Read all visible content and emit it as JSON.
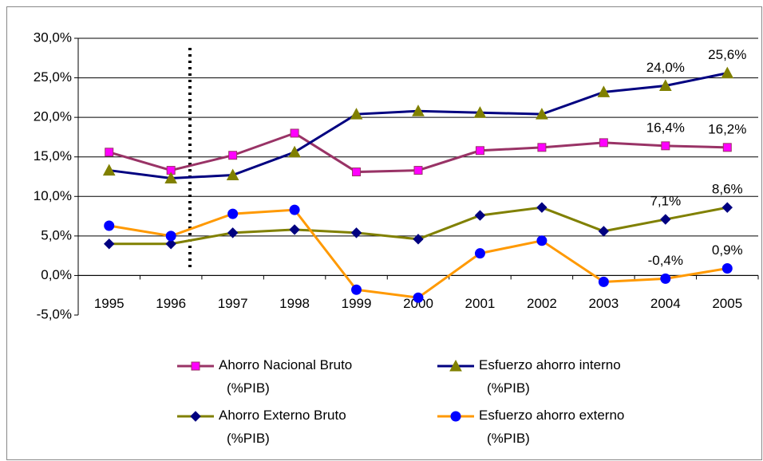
{
  "chart_data": {
    "type": "line",
    "categories": [
      "1995",
      "1996",
      "1997",
      "1998",
      "1999",
      "2000",
      "2001",
      "2002",
      "2003",
      "2004",
      "2005"
    ],
    "series": [
      {
        "name": "Ahorro Nacional Bruto\n(%PIB)",
        "color": "#993366",
        "marker": "square",
        "marker_color": "#ff00ff",
        "values": [
          15.6,
          13.3,
          15.2,
          18.0,
          13.1,
          13.3,
          15.8,
          16.2,
          16.8,
          16.4,
          16.2
        ],
        "value_labels": [
          null,
          null,
          null,
          null,
          null,
          null,
          null,
          null,
          null,
          "16,4%",
          "16,2%"
        ]
      },
      {
        "name": "Esfuerzo ahorro interno\n(%PIB)",
        "color": "#000080",
        "marker": "triangle",
        "marker_color": "#808000",
        "values": [
          13.3,
          12.3,
          12.7,
          15.6,
          20.4,
          20.8,
          20.6,
          20.4,
          23.2,
          24.0,
          25.6
        ],
        "value_labels": [
          null,
          null,
          null,
          null,
          null,
          null,
          null,
          null,
          null,
          "24,0%",
          "25,6%"
        ]
      },
      {
        "name": "Ahorro Externo Bruto\n(%PIB)",
        "color": "#808000",
        "marker": "diamond",
        "marker_color": "#000080",
        "values": [
          4.0,
          4.0,
          5.4,
          5.8,
          5.4,
          4.6,
          7.6,
          8.6,
          5.6,
          7.1,
          8.6
        ],
        "value_labels": [
          null,
          null,
          null,
          null,
          null,
          null,
          null,
          null,
          null,
          "7,1%",
          "8,6%"
        ]
      },
      {
        "name": "Esfuerzo ahorro externo\n(%PIB)",
        "color": "#ff9900",
        "marker": "circle",
        "marker_color": "#0000ff",
        "values": [
          6.3,
          5.0,
          7.8,
          8.3,
          -1.8,
          -2.8,
          2.8,
          4.4,
          -0.8,
          -0.4,
          0.9
        ],
        "value_labels": [
          null,
          null,
          null,
          null,
          null,
          null,
          null,
          null,
          null,
          "-0,4%",
          "0,9%"
        ]
      }
    ],
    "ylim": [
      -5,
      30
    ],
    "yticks": [
      {
        "value": -5,
        "label": "-5,0%"
      },
      {
        "value": 0,
        "label": "0,0%"
      },
      {
        "value": 5,
        "label": "5,0%"
      },
      {
        "value": 10,
        "label": "10,0%"
      },
      {
        "value": 15,
        "label": "15,0%"
      },
      {
        "value": 20,
        "label": "20,0%"
      },
      {
        "value": 25,
        "label": "25,0%"
      },
      {
        "value": 30,
        "label": "30,0%"
      }
    ],
    "grid": true,
    "legend": "bottom"
  }
}
